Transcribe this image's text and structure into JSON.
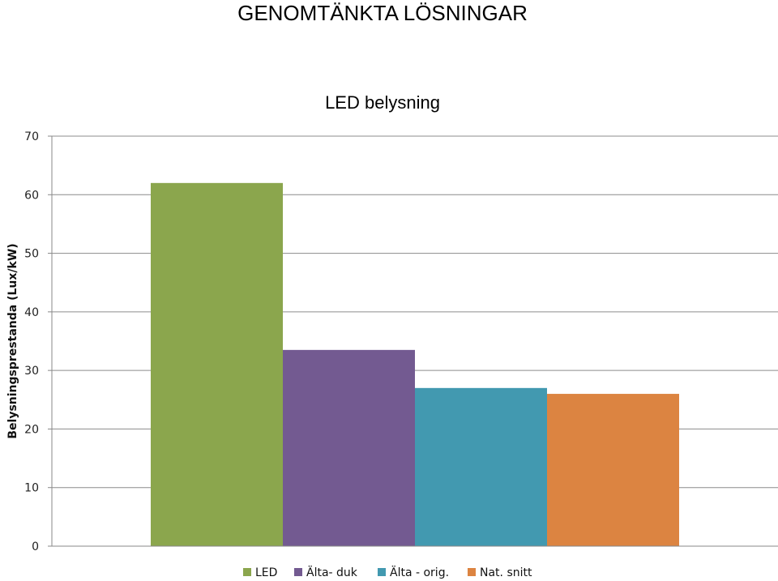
{
  "page": {
    "title": "GENOMTÄNKTA LÖSNINGAR"
  },
  "chart_data": {
    "type": "bar",
    "title": "LED belysning",
    "ylabel": "Belysningsprestanda (Lux/kW)",
    "xlabel": "",
    "ylim": [
      0,
      70
    ],
    "yticks": [
      0,
      10,
      20,
      30,
      40,
      50,
      60,
      70
    ],
    "grid": true,
    "legend_position": "bottom",
    "series": [
      {
        "name": "LED",
        "value": 62,
        "color": "#8ba64d"
      },
      {
        "name": "Älta- duk",
        "value": 33.5,
        "color": "#735a91"
      },
      {
        "name": "Älta - orig.",
        "value": 27,
        "color": "#4299b0"
      },
      {
        "name": "Nat. snitt",
        "value": 26,
        "color": "#dc8441"
      }
    ]
  }
}
